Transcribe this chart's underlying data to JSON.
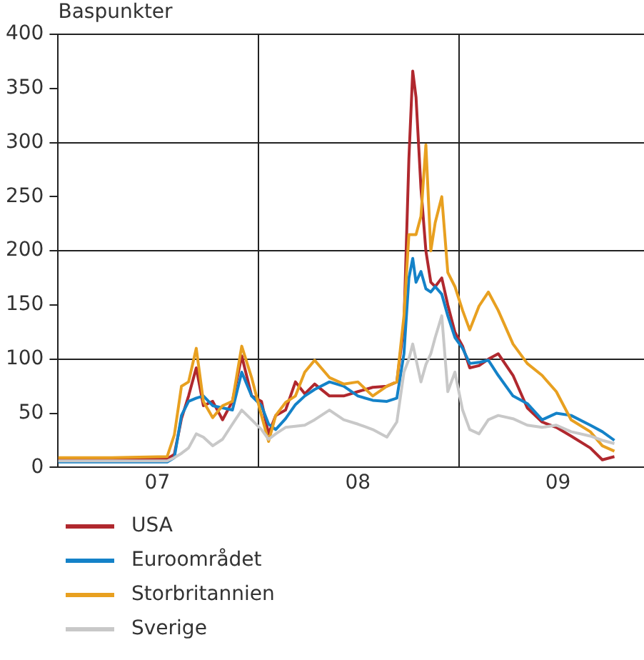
{
  "chart_data": {
    "type": "line",
    "ylabel": "Baspunkter",
    "x": [
      "2007-01-01",
      "2007-04-08",
      "2007-07-19",
      "2007-08-01",
      "2007-08-14",
      "2007-08-27",
      "2007-09-10",
      "2007-09-23",
      "2007-10-10",
      "2007-10-28",
      "2007-11-15",
      "2007-12-02",
      "2007-12-20",
      "2008-01-07",
      "2008-01-20",
      "2008-02-02",
      "2008-02-20",
      "2008-03-09",
      "2008-03-26",
      "2008-04-13",
      "2008-05-10",
      "2008-06-05",
      "2008-07-01",
      "2008-07-28",
      "2008-08-23",
      "2008-09-10",
      "2008-09-23",
      "2008-10-02",
      "2008-10-09",
      "2008-10-15",
      "2008-10-24",
      "2008-11-02",
      "2008-11-11",
      "2008-11-19",
      "2008-12-01",
      "2008-12-12",
      "2008-12-25",
      "2009-01-08",
      "2009-01-21",
      "2009-02-07",
      "2009-02-24",
      "2009-03-14",
      "2009-04-10",
      "2009-05-06",
      "2009-06-02",
      "2009-06-28",
      "2009-07-25",
      "2009-08-29",
      "2009-09-20",
      "2009-10-12"
    ],
    "series": [
      {
        "name": "USA",
        "color": "#b0282e",
        "values": [
          8,
          7,
          8,
          12,
          45,
          66,
          92,
          57,
          61,
          44,
          61,
          103,
          66,
          61,
          31,
          48,
          53,
          79,
          68,
          77,
          66,
          66,
          70,
          74,
          75,
          79,
          132,
          285,
          366,
          342,
          258,
          200,
          171,
          167,
          175,
          150,
          125,
          112,
          92,
          94,
          100,
          105,
          85,
          55,
          42,
          37,
          29,
          18,
          7,
          10
        ]
      },
      {
        "name": "Euroområdet",
        "color": "#1482c8",
        "values": [
          5,
          5,
          5,
          9,
          48,
          61,
          64,
          66,
          57,
          55,
          53,
          88,
          66,
          57,
          40,
          35,
          45,
          58,
          66,
          72,
          79,
          75,
          66,
          62,
          61,
          64,
          105,
          175,
          193,
          171,
          181,
          165,
          162,
          167,
          160,
          140,
          120,
          110,
          96,
          97,
          99,
          85,
          66,
          59,
          44,
          50,
          48,
          39,
          33,
          25
        ]
      },
      {
        "name": "Storbritannien",
        "color": "#e8a020",
        "values": [
          9,
          9,
          10,
          30,
          75,
          79,
          110,
          61,
          46,
          57,
          61,
          112,
          83,
          48,
          24,
          48,
          60,
          66,
          88,
          99,
          83,
          77,
          79,
          66,
          75,
          79,
          140,
          215,
          215,
          215,
          232,
          298,
          200,
          226,
          250,
          180,
          167,
          145,
          127,
          149,
          162,
          145,
          114,
          96,
          85,
          70,
          44,
          33,
          20,
          15
        ]
      },
      {
        "name": "Sverige",
        "color": "#c8c8c8",
        "values": [
          6,
          6,
          6,
          9,
          13,
          18,
          31,
          28,
          20,
          26,
          40,
          53,
          44,
          35,
          26,
          31,
          37,
          38,
          39,
          44,
          53,
          44,
          40,
          35,
          28,
          42,
          88,
          100,
          114,
          100,
          79,
          95,
          105,
          120,
          140,
          70,
          88,
          53,
          35,
          31,
          44,
          48,
          45,
          39,
          37,
          39,
          33,
          29,
          25,
          22
        ]
      }
    ],
    "xlim": [
      "2007-01-01",
      "2009-12-05"
    ],
    "xticks": [
      {
        "value": "2007-07-01",
        "label": "07"
      },
      {
        "value": "2008-01-01",
        "label": null
      },
      {
        "value": "2008-07-01",
        "label": "08"
      },
      {
        "value": "2009-01-01",
        "label": null
      },
      {
        "value": "2009-07-01",
        "label": "09"
      }
    ],
    "ylim": [
      0,
      400
    ],
    "yticks": [
      0,
      50,
      100,
      150,
      200,
      250,
      300,
      350,
      400
    ],
    "grid": true,
    "legend": "bottom",
    "marker": "none",
    "line_style": "solid"
  }
}
